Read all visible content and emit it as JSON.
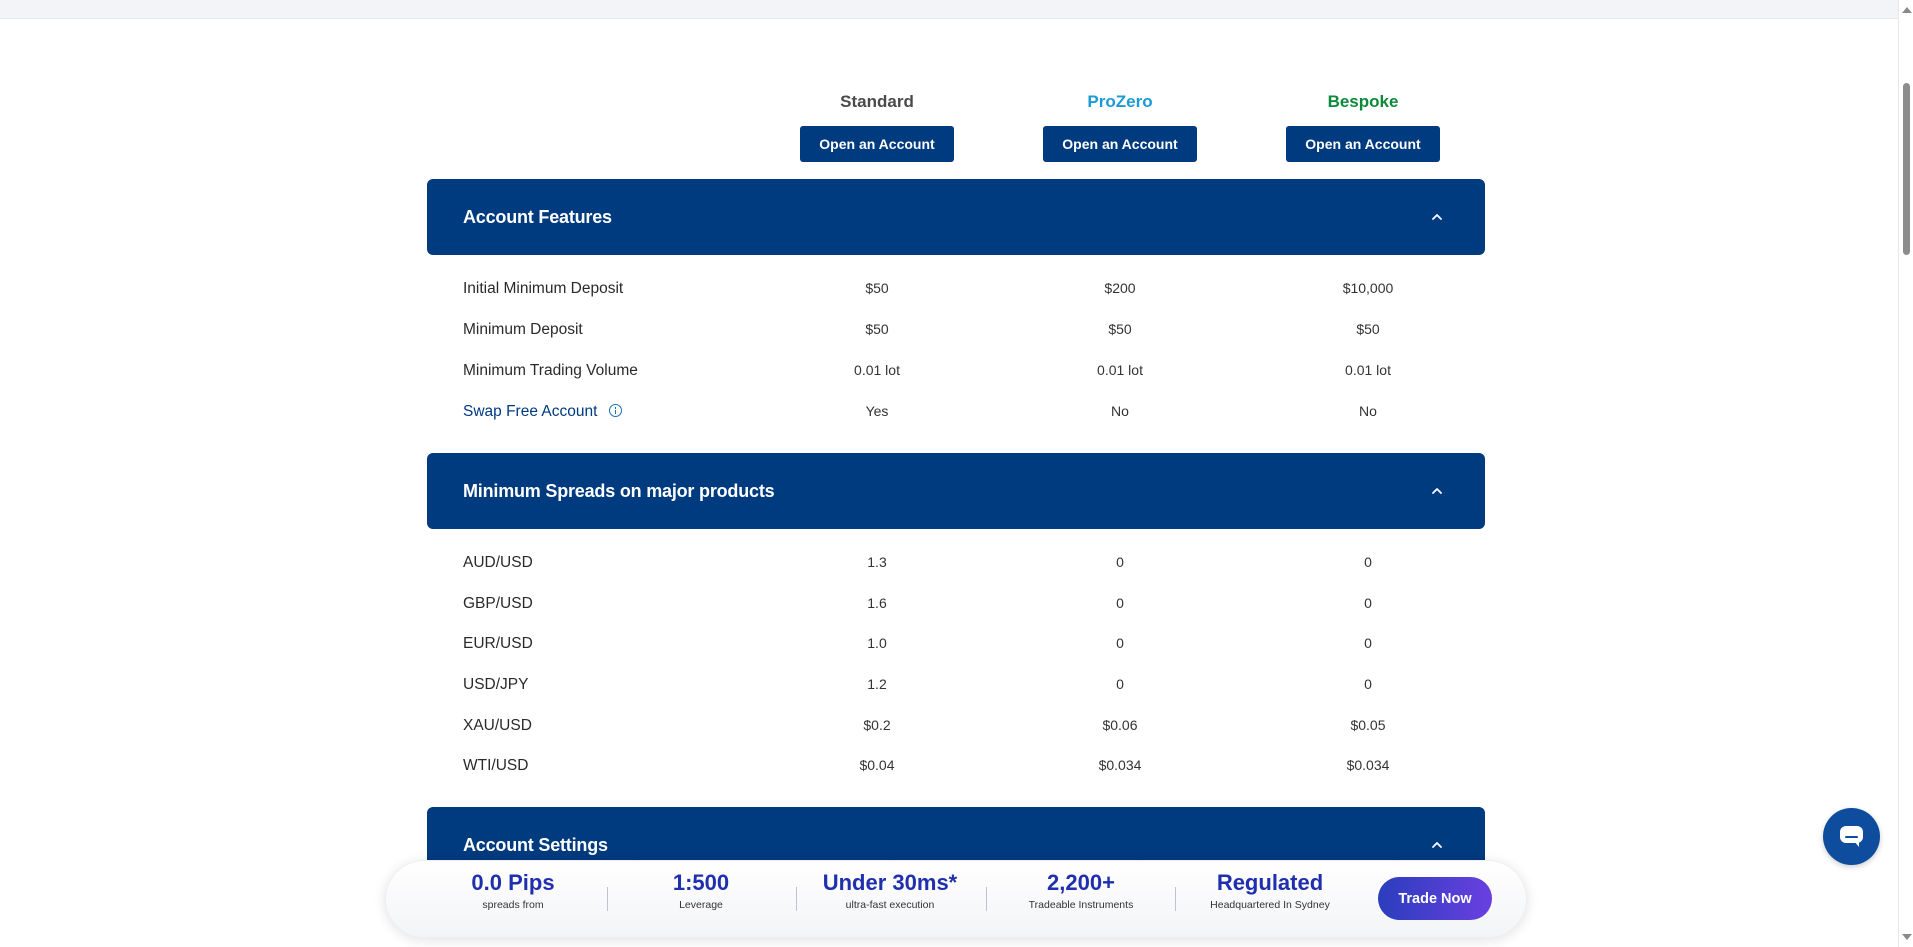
{
  "plans": [
    {
      "name": "Standard",
      "button": "Open an Account"
    },
    {
      "name": "ProZero",
      "button": "Open an Account"
    },
    {
      "name": "Bespoke",
      "button": "Open an Account"
    }
  ],
  "sections": {
    "account_features": {
      "title": "Account Features",
      "rows": [
        {
          "label": "Initial Minimum Deposit",
          "values": [
            "$50",
            "$200",
            "$10,000"
          ]
        },
        {
          "label": "Minimum Deposit",
          "values": [
            "$50",
            "$50",
            "$50"
          ]
        },
        {
          "label": "Minimum Trading Volume",
          "values": [
            "0.01 lot",
            "0.01 lot",
            "0.01 lot"
          ]
        },
        {
          "label": "Swap Free Account",
          "values": [
            "Yes",
            "No",
            "No"
          ]
        }
      ]
    },
    "min_spreads": {
      "title": "Minimum Spreads on major products",
      "rows": [
        {
          "label": "AUD/USD",
          "values": [
            "1.3",
            "0",
            "0"
          ]
        },
        {
          "label": "GBP/USD",
          "values": [
            "1.6",
            "0",
            "0"
          ]
        },
        {
          "label": "EUR/USD",
          "values": [
            "1.0",
            "0",
            "0"
          ]
        },
        {
          "label": "USD/JPY",
          "values": [
            "1.2",
            "0",
            "0"
          ]
        },
        {
          "label": "XAU/USD",
          "values": [
            "$0.2",
            "$0.06",
            "$0.05"
          ]
        },
        {
          "label": "WTI/USD",
          "values": [
            "$0.04",
            "$0.034",
            "$0.034"
          ]
        }
      ]
    },
    "account_settings": {
      "title": "Account Settings"
    }
  },
  "bottom_bar": {
    "stats": [
      {
        "value": "0.0 Pips",
        "caption": "spreads from"
      },
      {
        "value": "1:500",
        "caption": "Leverage"
      },
      {
        "value": "Under 30ms*",
        "caption": "ultra-fast execution"
      },
      {
        "value": "2,200+",
        "caption": "Tradeable Instruments"
      },
      {
        "value": "Regulated",
        "caption": "Headquartered In Sydney"
      }
    ],
    "cta": "Trade Now"
  },
  "icons": {
    "section_toggle": "chevron-up-icon",
    "info": "info-icon",
    "chat": "chat-icon"
  },
  "colors": {
    "primary": "#003a7f",
    "prozero": "#1c9ad6",
    "bespoke": "#0b8a3a",
    "stat_value": "#1f2fae"
  }
}
